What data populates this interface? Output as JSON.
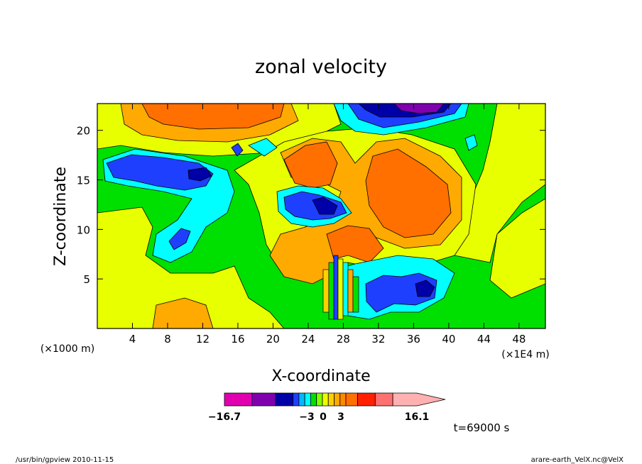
{
  "chart_data": {
    "type": "heatmap",
    "title": "zonal velocity",
    "xlabel": "X-coordinate",
    "ylabel": "Z-coordinate",
    "x_unit_left": "(×1000 m)",
    "x_unit_right": "(×1E4 m)",
    "xlim": [
      0,
      51
    ],
    "ylim": [
      0,
      22.7
    ],
    "x_ticks": [
      4,
      8,
      12,
      16,
      20,
      24,
      28,
      32,
      36,
      40,
      44,
      48
    ],
    "y_ticks": [
      5,
      10,
      15,
      20
    ],
    "grid": false,
    "colorbar": {
      "min_label": "−16.7",
      "max_label": "16.1",
      "mid_labels": [
        "−3",
        "0",
        "3"
      ],
      "levels": [
        -16.7,
        -12,
        -8,
        -5,
        -4,
        -3,
        -2,
        -1,
        0,
        1,
        2,
        3,
        4,
        6,
        9,
        12,
        16.1
      ],
      "colors": [
        "#e000b0",
        "#8000b0",
        "#0000a8",
        "#1f3fff",
        "#00b8ff",
        "#00ffff",
        "#00e000",
        "#7fff00",
        "#e8ff00",
        "#ffd000",
        "#ffaa00",
        "#ff8800",
        "#ff7000",
        "#ff2000",
        "#ff7070",
        "#ffb0b0"
      ]
    },
    "annotation": "t=69000 s"
  },
  "footer": {
    "left": "/usr/bin/gpview  2010-11-15",
    "right": "arare-earth_VelX.nc@VelX"
  },
  "colors": {
    "background": "#ffffff",
    "frame": "#000000"
  }
}
